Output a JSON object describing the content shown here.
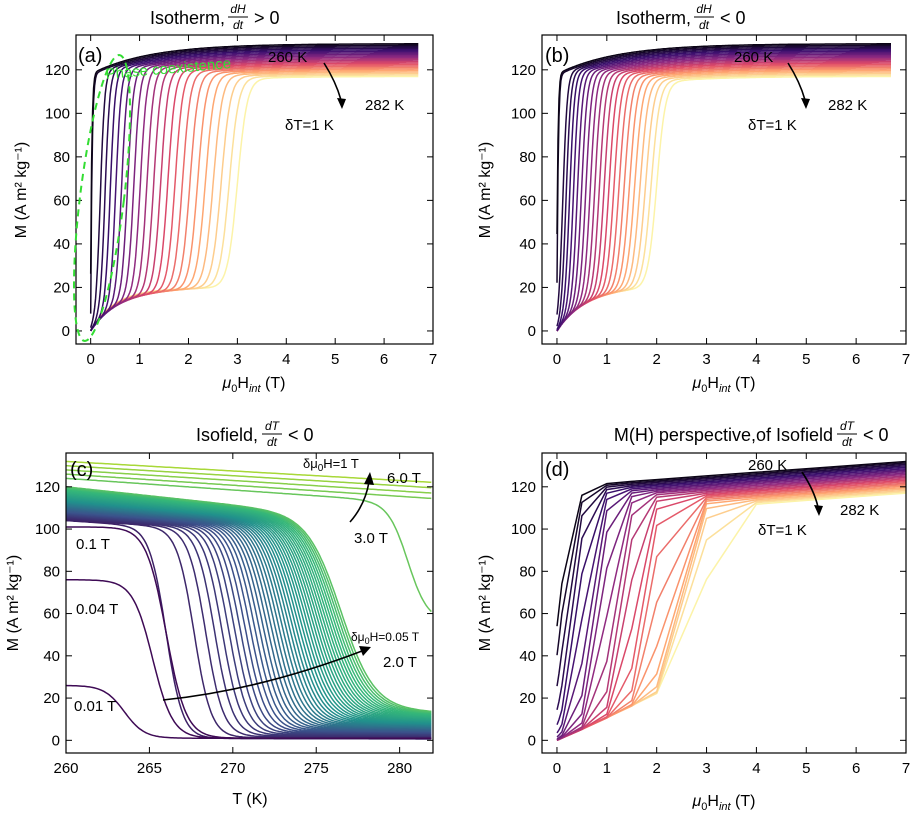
{
  "colors": {
    "isotherm_cold": "#0b0416",
    "isotherm_hot": "#fcf3a8",
    "isofield_low": "#3e0a55",
    "isofield_high": "#a8d838",
    "coexistence": "#33dd33",
    "arrow": "#000000"
  },
  "chart_data": [
    {
      "panel": "(a)",
      "type": "line",
      "title": "Isotherm,",
      "title_fraction": {
        "num": "dH",
        "den": "dt",
        "relation": "> 0"
      },
      "xlabel": {
        "base": "μ",
        "sub1": "0",
        "mid": "H",
        "sub2": "int",
        "unit": " (T)"
      },
      "ylabel": "M (A m² kg⁻¹)",
      "xlim": [
        -0.3,
        7
      ],
      "ylim": [
        -6,
        136
      ],
      "xticks": [
        "0",
        "1",
        "2",
        "3",
        "4",
        "5",
        "6",
        "7"
      ],
      "yticks": [
        "0",
        "20",
        "40",
        "60",
        "80",
        "100",
        "120"
      ],
      "series_temperatures_K": {
        "start": 260,
        "end": 282,
        "step": 1
      },
      "transition_field_T": {
        "at_260K": 0.05,
        "at_282K": 3.0
      },
      "saturation_M_at_7T": {
        "at_260K": 132,
        "at_282K": 117
      },
      "annotations": {
        "t_low": "260 K",
        "t_high": "282 K",
        "step": "δT=1 K",
        "region": "Phase coexistence"
      }
    },
    {
      "panel": "(b)",
      "type": "line",
      "title": "Isotherm,",
      "title_fraction": {
        "num": "dH",
        "den": "dt",
        "relation": "< 0"
      },
      "xlabel": {
        "base": "μ",
        "sub1": "0",
        "mid": "H",
        "sub2": "int",
        "unit": " (T)"
      },
      "ylabel": "M (A m² kg⁻¹)",
      "xlim": [
        -0.3,
        7
      ],
      "ylim": [
        -6,
        136
      ],
      "xticks": [
        "0",
        "1",
        "2",
        "3",
        "4",
        "5",
        "6",
        "7"
      ],
      "yticks": [
        "0",
        "20",
        "40",
        "60",
        "80",
        "100",
        "120"
      ],
      "series_temperatures_K": {
        "start": 260,
        "end": 282,
        "step": 1
      },
      "transition_field_T": {
        "at_260K": 0.02,
        "at_282K": 2.0
      },
      "saturation_M_at_7T": {
        "at_260K": 132,
        "at_282K": 117
      },
      "annotations": {
        "t_low": "260 K",
        "t_high": "282 K",
        "step": "δT=1 K"
      }
    },
    {
      "panel": "(c)",
      "type": "line",
      "title": "Isofield,",
      "title_fraction": {
        "num": "dT",
        "den": "dt",
        "relation": "< 0"
      },
      "xlabel": "T (K)",
      "ylabel": "M (A m² kg⁻¹)",
      "xlim": [
        260,
        282
      ],
      "ylim": [
        -6,
        136
      ],
      "xticks": [
        "260",
        "265",
        "270",
        "275",
        "280"
      ],
      "yticks": [
        "0",
        "20",
        "40",
        "60",
        "80",
        "100",
        "120"
      ],
      "low_fields_T": [
        {
          "field": 0.01,
          "M_low_T": 26,
          "T_transition": 263.5
        },
        {
          "field": 0.04,
          "M_low_T": 76,
          "T_transition": 265.2
        },
        {
          "field": 0.1,
          "M_low_T": 101,
          "T_transition": 266.0
        }
      ],
      "fine_field_range_T": {
        "start": 0.05,
        "end": 2.0,
        "step": 0.05
      },
      "coarse_fields_T": [
        3.0,
        4.0,
        5.0,
        6.0,
        7.0
      ],
      "annotations": {
        "f_001": "0.01 T",
        "f_004": "0.04 T",
        "f_01": "0.1 T",
        "f_20": "2.0 T",
        "f_30": "3.0 T",
        "f_60": "6.0 T",
        "step_fine": {
          "pre": "δμ",
          "sub": "0",
          "post": "H=0.05 T"
        },
        "step_coarse": {
          "pre": "δμ",
          "sub": "0",
          "post": "H=1 T"
        }
      }
    },
    {
      "panel": "(d)",
      "type": "line",
      "title": "M(H) perspective,of Isofield",
      "title_fraction": {
        "num": "dT",
        "den": "dt",
        "relation": "< 0"
      },
      "xlabel": {
        "base": "μ",
        "sub1": "0",
        "mid": "H",
        "sub2": "int",
        "unit": " (T)"
      },
      "ylabel": "M (A m² kg⁻¹)",
      "xlim": [
        -0.3,
        7
      ],
      "ylim": [
        -6,
        136
      ],
      "xticks": [
        "0",
        "1",
        "2",
        "3",
        "4",
        "5",
        "6",
        "7"
      ],
      "yticks": [
        "0",
        "20",
        "40",
        "60",
        "80",
        "100",
        "120"
      ],
      "series_temperatures_K": {
        "start": 260,
        "end": 282,
        "step": 1
      },
      "field_grid_T": [
        0.01,
        0.04,
        0.1,
        0.5,
        1.0,
        1.5,
        2.0,
        3.0,
        4.0,
        5.0,
        6.0,
        7.0
      ],
      "annotations": {
        "t_low": "260 K",
        "t_high": "282 K",
        "step": "δT=1 K"
      }
    }
  ]
}
